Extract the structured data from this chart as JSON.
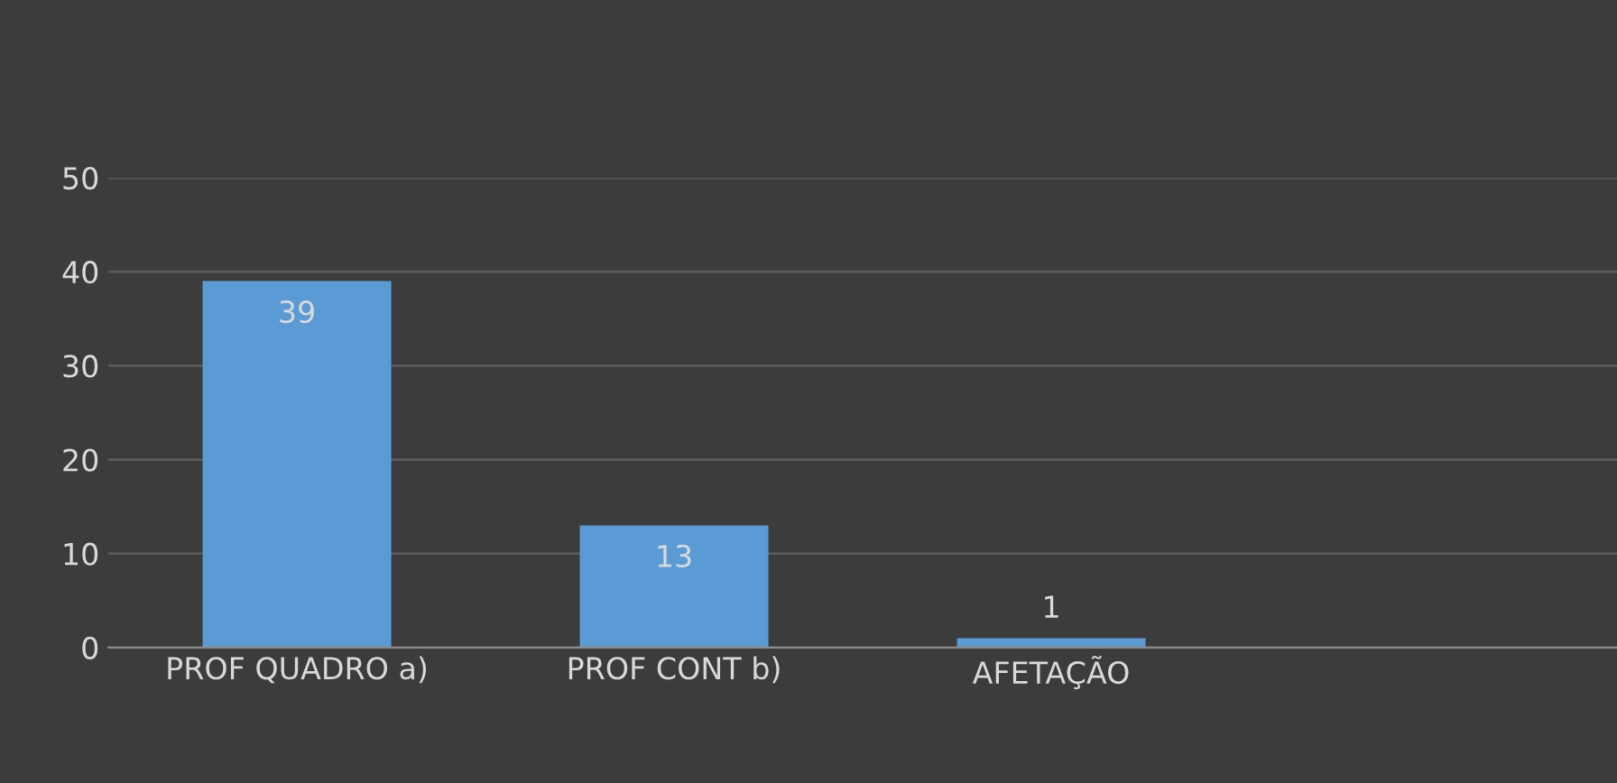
{
  "chart_data": {
    "type": "bar",
    "categories": [
      "PROF QUADRO a)",
      "PROF CONT b)",
      "AFETAÇÃO",
      null
    ],
    "values": [
      39,
      13,
      1,
      null
    ],
    "color": "#5b9bd5",
    "ylim": [
      0,
      50
    ],
    "yticks": [
      0,
      10,
      20,
      30,
      40,
      50
    ],
    "grid": "y",
    "data_labels": true
  }
}
